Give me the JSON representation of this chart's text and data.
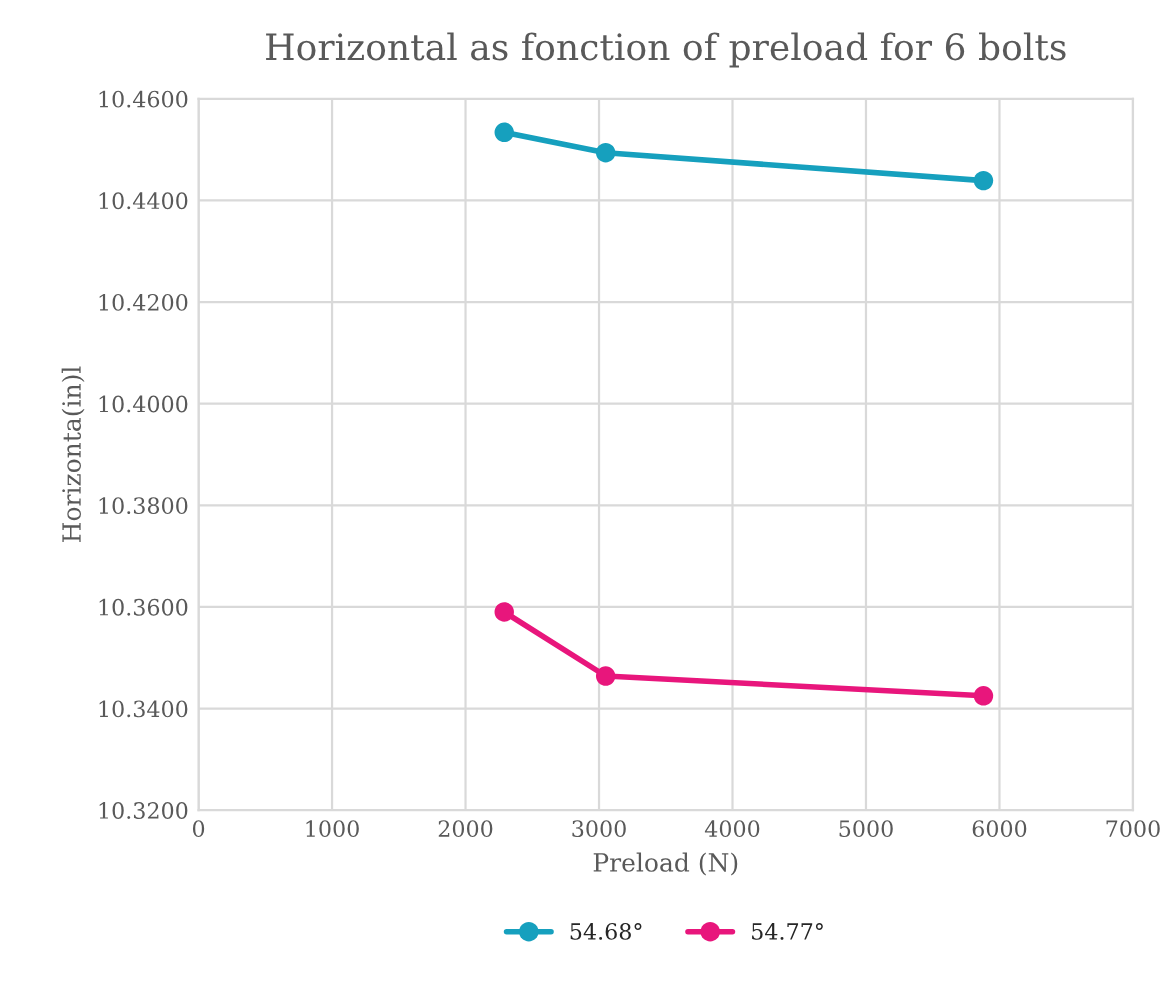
{
  "chart_data": {
    "type": "line",
    "title": "Horizontal as fonction of preload for 6 bolts",
    "xlabel": "Preload (N)",
    "ylabel": "Horizonta(in)l",
    "series": [
      {
        "name": "54.68°",
        "color": "#16a0be",
        "x": [
          2290,
          3050,
          5880
        ],
        "values": [
          10.4534,
          10.4494,
          10.4439
        ]
      },
      {
        "name": "54.77°",
        "color": "#e8167c",
        "x": [
          2290,
          3050,
          5880
        ],
        "values": [
          10.359,
          10.3464,
          10.3425
        ]
      }
    ],
    "xlim": [
      0,
      7000
    ],
    "xticks": [
      0,
      1000,
      2000,
      3000,
      4000,
      5000,
      6000,
      7000
    ],
    "ylim": [
      10.32,
      10.46
    ],
    "yticks": [
      {
        "value": 10.32,
        "label": "10.3200"
      },
      {
        "value": 10.34,
        "label": "10.3400"
      },
      {
        "value": 10.36,
        "label": "10.3600"
      },
      {
        "value": 10.38,
        "label": "10.3800"
      },
      {
        "value": 10.4,
        "label": "10.4000"
      },
      {
        "value": 10.42,
        "label": "10.4200"
      },
      {
        "value": 10.44,
        "label": "10.4400"
      },
      {
        "value": 10.46,
        "label": "10.4600"
      }
    ],
    "grid": true,
    "legend": "bottom",
    "marker": "circle",
    "line_style": "solid"
  }
}
